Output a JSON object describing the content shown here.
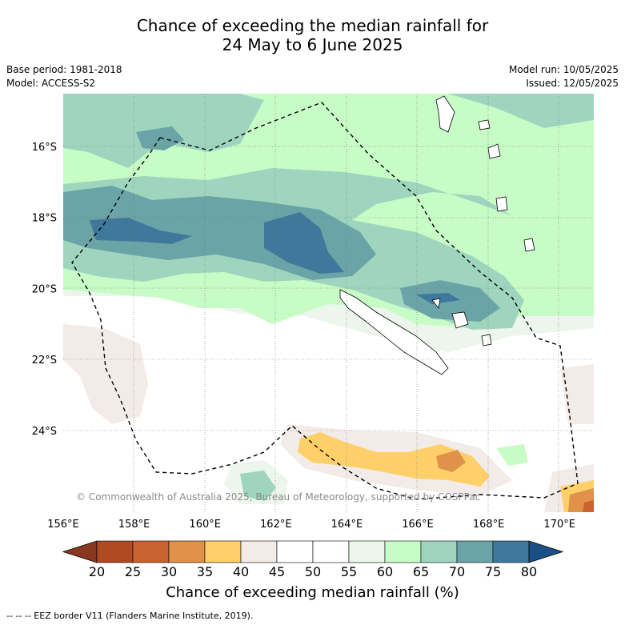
{
  "title_line1": "Chance of exceeding the median rainfall for",
  "title_line2": "24 May to 6 June 2025",
  "base_period": "Base period: 1981-2018",
  "model": "Model: ACCESS-S2",
  "model_run": "Model run: 10/05/2025",
  "issued": "Issued: 12/05/2025",
  "copyright": "© Commonwealth of Australia 2025, Bureau of Meteorology, supported by COSPPac",
  "eez_note": "--  --  -- EEZ border V11 (Flanders Marine Institute, 2019).",
  "chart_data": {
    "type": "heatmap",
    "subtype": "contour map",
    "xaxis": {
      "ticks": [
        "156°E",
        "158°E",
        "160°E",
        "162°E",
        "164°E",
        "166°E",
        "168°E",
        "170°E"
      ]
    },
    "yaxis": {
      "ticks": [
        "16°S",
        "18°S",
        "20°S",
        "22°S",
        "24°S"
      ]
    },
    "grid": true,
    "colorbar": {
      "label": "Chance of exceeding median rainfall (%)",
      "ticks": [
        "20",
        "25",
        "30",
        "35",
        "40",
        "45",
        "50",
        "55",
        "60",
        "65",
        "70",
        "75",
        "80"
      ],
      "colors": [
        "#b04a23",
        "#c9622f",
        "#e0924a",
        "#ffd06a",
        "#f2ebe8",
        "#ffffff",
        "#ffffff",
        "#ecf6ec",
        "#c7fcc7",
        "#9fd5be",
        "#6aa4a6",
        "#40789c"
      ],
      "under_color": "#8a3720",
      "over_color": "#184f85",
      "orientation": "horizontal",
      "extend": "both"
    }
  }
}
